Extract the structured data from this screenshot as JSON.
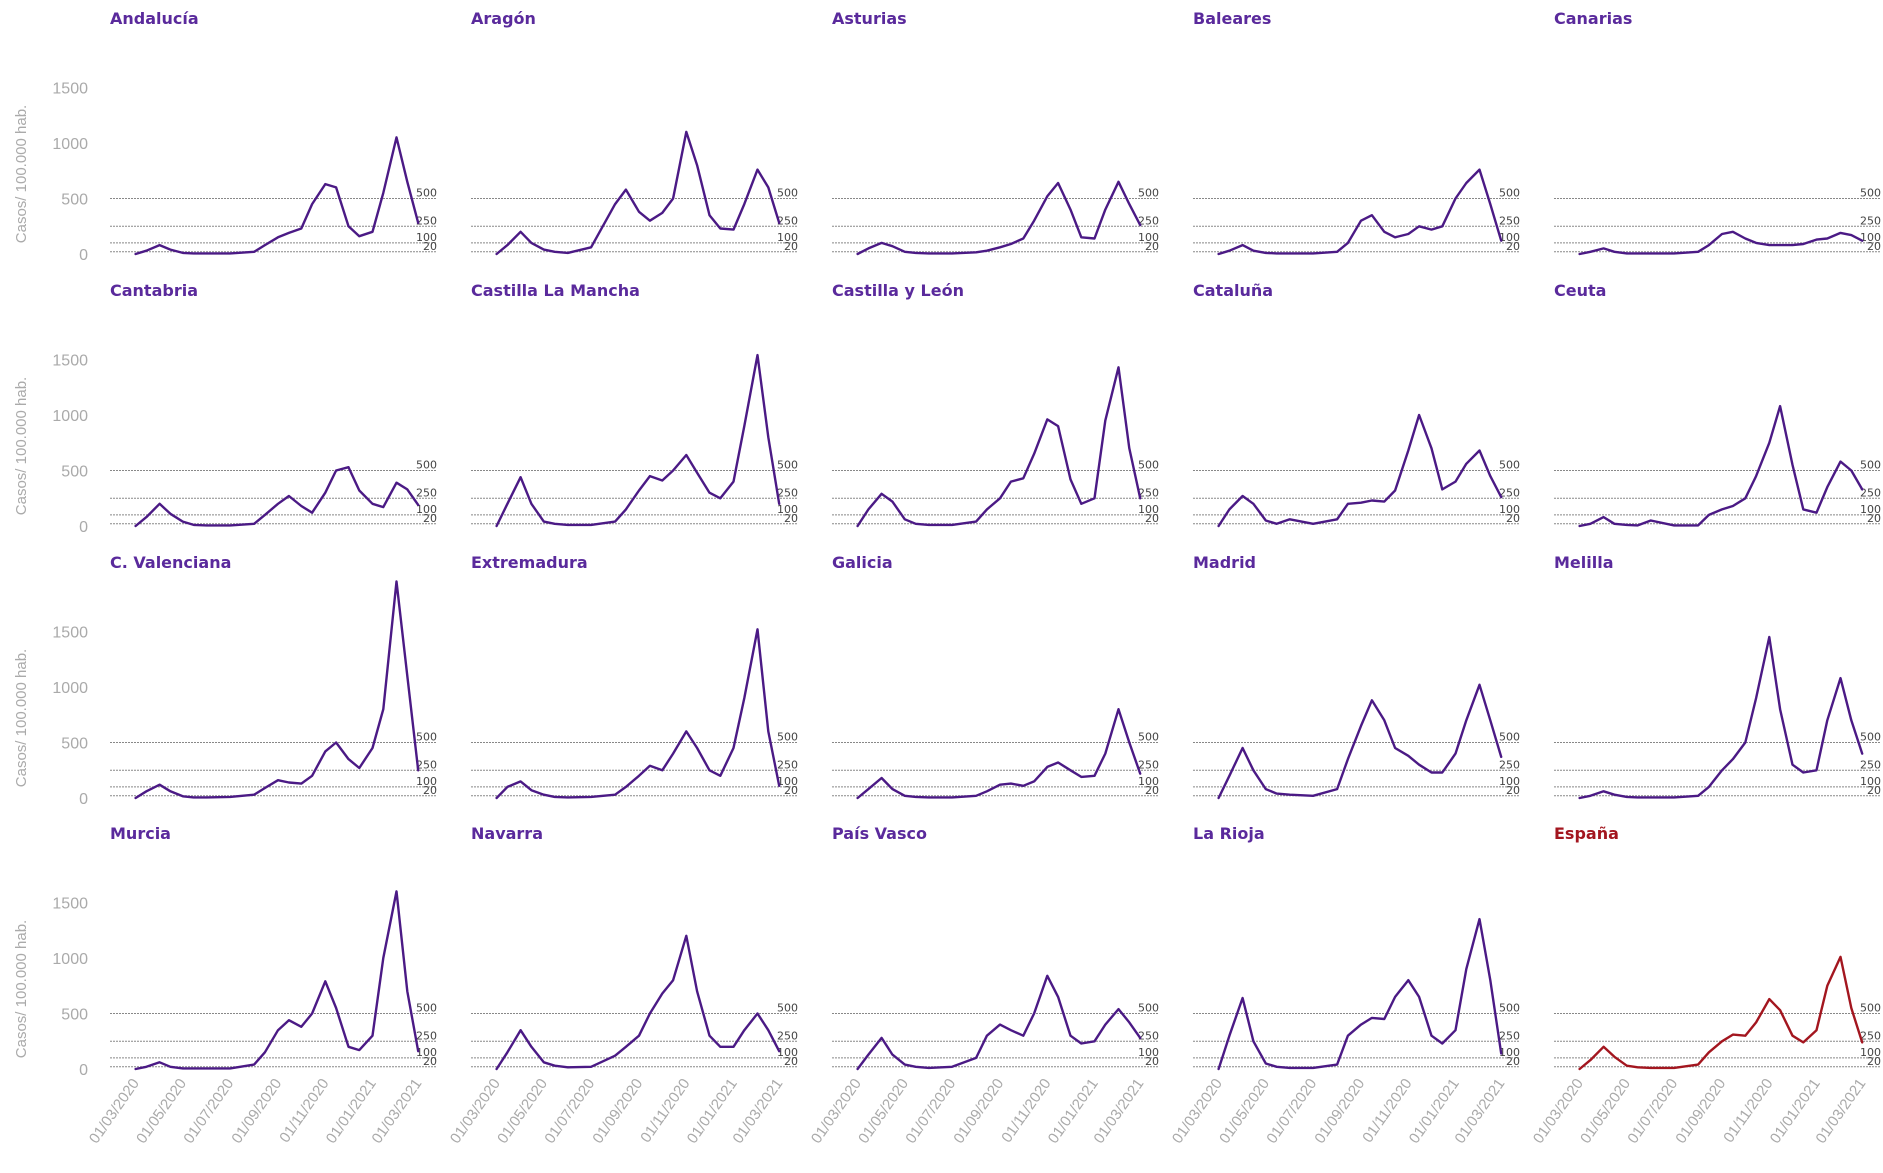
{
  "colors": {
    "line": "#4b1a85",
    "highlight": "#a3161f",
    "title": "#5a2a9c",
    "axis_text": "#aaaaaa",
    "ref_line": "#888888"
  },
  "chart_data": {
    "type": "line",
    "layout": "small-multiples 5x4",
    "ylabel": "Casos/ 100.000 hab.",
    "yticks": [
      0,
      500,
      1000,
      1500
    ],
    "ylim": [
      0,
      2000
    ],
    "xlim": [
      "2020-02-15",
      "2021-03-15"
    ],
    "xticks": [
      "01/03/2020",
      "01/05/2020",
      "01/07/2020",
      "01/09/2020",
      "01/11/2020",
      "01/01/2021",
      "01/03/2021"
    ],
    "reference_lines": [
      500,
      250,
      100,
      20
    ],
    "x": [
      "2020-03-01",
      "2020-03-15",
      "2020-04-01",
      "2020-04-15",
      "2020-05-01",
      "2020-05-15",
      "2020-06-01",
      "2020-07-01",
      "2020-08-01",
      "2020-08-15",
      "2020-09-01",
      "2020-09-15",
      "2020-10-01",
      "2020-10-15",
      "2020-11-01",
      "2020-11-15",
      "2020-12-01",
      "2020-12-15",
      "2021-01-01",
      "2021-01-15",
      "2021-02-01",
      "2021-02-15",
      "2021-03-01"
    ],
    "series": [
      {
        "name": "Andalucía",
        "values": [
          0,
          30,
          80,
          40,
          10,
          5,
          5,
          5,
          20,
          80,
          150,
          190,
          230,
          450,
          630,
          600,
          250,
          160,
          200,
          550,
          1050,
          650,
          280
        ]
      },
      {
        "name": "Aragón",
        "values": [
          0,
          80,
          200,
          100,
          40,
          20,
          10,
          60,
          450,
          580,
          380,
          300,
          370,
          500,
          1100,
          800,
          350,
          230,
          220,
          450,
          760,
          600,
          280
        ]
      },
      {
        "name": "Asturias",
        "values": [
          0,
          50,
          100,
          70,
          20,
          10,
          5,
          5,
          15,
          30,
          60,
          90,
          140,
          300,
          520,
          640,
          400,
          150,
          140,
          400,
          650,
          450,
          260
        ]
      },
      {
        "name": "Baleares",
        "values": [
          0,
          30,
          80,
          30,
          10,
          5,
          5,
          5,
          20,
          100,
          300,
          350,
          200,
          150,
          180,
          250,
          220,
          250,
          500,
          640,
          760,
          450,
          120
        ]
      },
      {
        "name": "Canarias",
        "values": [
          0,
          20,
          50,
          20,
          5,
          5,
          5,
          5,
          20,
          80,
          180,
          200,
          140,
          100,
          80,
          80,
          80,
          90,
          130,
          140,
          190,
          170,
          120
        ]
      },
      {
        "name": "Cantabria",
        "values": [
          0,
          80,
          200,
          110,
          40,
          10,
          5,
          5,
          20,
          100,
          200,
          270,
          180,
          120,
          300,
          500,
          530,
          320,
          200,
          170,
          390,
          330,
          190
        ]
      },
      {
        "name": "Castilla La Mancha",
        "values": [
          0,
          200,
          440,
          200,
          40,
          20,
          10,
          10,
          40,
          150,
          320,
          450,
          410,
          500,
          640,
          480,
          300,
          250,
          400,
          900,
          1540,
          800,
          200
        ]
      },
      {
        "name": "Castilla y León",
        "values": [
          0,
          150,
          290,
          220,
          60,
          20,
          10,
          10,
          40,
          150,
          250,
          400,
          430,
          650,
          960,
          900,
          420,
          200,
          250,
          950,
          1430,
          700,
          250
        ]
      },
      {
        "name": "Cataluña",
        "values": [
          0,
          150,
          270,
          200,
          50,
          20,
          60,
          20,
          60,
          200,
          210,
          230,
          220,
          320,
          680,
          1000,
          700,
          330,
          400,
          560,
          680,
          450,
          260
        ]
      },
      {
        "name": "Ceuta",
        "values": [
          0,
          20,
          80,
          20,
          10,
          5,
          50,
          5,
          5,
          100,
          150,
          180,
          250,
          450,
          750,
          1080,
          550,
          150,
          120,
          350,
          580,
          500,
          330
        ]
      },
      {
        "name": "C. Valenciana",
        "values": [
          0,
          60,
          120,
          60,
          15,
          5,
          5,
          10,
          30,
          90,
          160,
          140,
          130,
          200,
          420,
          500,
          350,
          270,
          450,
          800,
          1950,
          1100,
          250
        ]
      },
      {
        "name": "Extremadura",
        "values": [
          0,
          100,
          150,
          70,
          30,
          10,
          5,
          10,
          30,
          100,
          200,
          290,
          250,
          400,
          600,
          450,
          250,
          200,
          450,
          900,
          1520,
          600,
          110
        ]
      },
      {
        "name": "Galicia",
        "values": [
          0,
          80,
          180,
          80,
          20,
          10,
          5,
          5,
          20,
          60,
          120,
          130,
          110,
          150,
          280,
          320,
          250,
          190,
          200,
          400,
          800,
          500,
          220
        ]
      },
      {
        "name": "Madrid",
        "values": [
          0,
          200,
          450,
          250,
          80,
          40,
          30,
          20,
          80,
          350,
          650,
          880,
          700,
          450,
          380,
          300,
          230,
          230,
          400,
          700,
          1020,
          700,
          370
        ]
      },
      {
        "name": "Melilla",
        "values": [
          0,
          20,
          60,
          30,
          10,
          5,
          5,
          5,
          20,
          100,
          250,
          350,
          500,
          900,
          1450,
          800,
          300,
          230,
          250,
          700,
          1080,
          700,
          400
        ]
      },
      {
        "name": "Murcia",
        "values": [
          0,
          20,
          60,
          20,
          5,
          5,
          5,
          5,
          40,
          150,
          350,
          440,
          380,
          500,
          790,
          550,
          200,
          170,
          300,
          1000,
          1600,
          700,
          160
        ]
      },
      {
        "name": "Navarra",
        "values": [
          0,
          150,
          350,
          200,
          60,
          30,
          15,
          20,
          120,
          200,
          300,
          500,
          680,
          800,
          1200,
          700,
          300,
          200,
          200,
          350,
          500,
          350,
          160
        ]
      },
      {
        "name": "País Vasco",
        "values": [
          0,
          130,
          280,
          130,
          40,
          20,
          10,
          20,
          100,
          300,
          400,
          350,
          300,
          500,
          840,
          650,
          300,
          230,
          250,
          400,
          540,
          420,
          280
        ]
      },
      {
        "name": "La Rioja",
        "values": [
          0,
          300,
          640,
          250,
          50,
          20,
          10,
          10,
          40,
          300,
          400,
          460,
          450,
          650,
          800,
          650,
          300,
          230,
          350,
          900,
          1350,
          800,
          140
        ]
      },
      {
        "name": "España",
        "values": [
          0,
          80,
          200,
          110,
          30,
          15,
          10,
          10,
          40,
          150,
          250,
          310,
          300,
          420,
          630,
          530,
          300,
          240,
          350,
          750,
          1010,
          550,
          240
        ]
      }
    ]
  }
}
